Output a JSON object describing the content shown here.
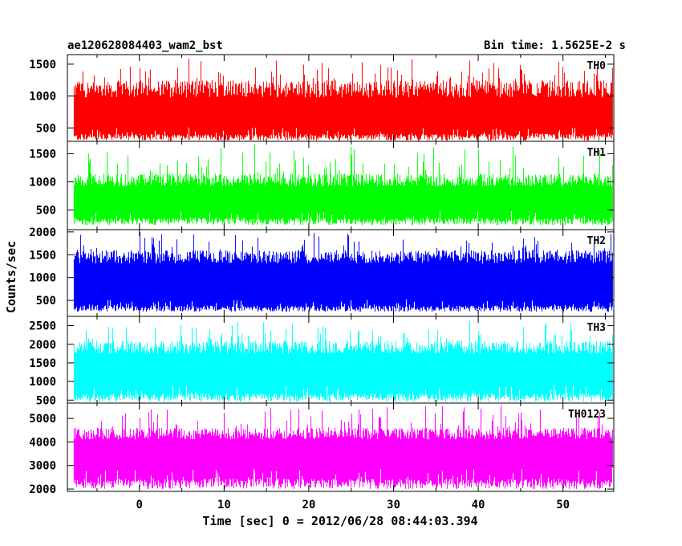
{
  "header": {
    "left_title": "ae120628084403_wam2_bst",
    "right_title": "Bin time: 1.5625E-2 s"
  },
  "chart_data": {
    "type": "line",
    "title": "ae120628084403_wam2_bst",
    "subtitle": "Bin time: 1.5625E-2 s",
    "xlabel": "Time [sec] 0 = 2012/06/28 08:44:03.394",
    "ylabel": "Counts/sec",
    "xlim": [
      -8.5,
      56
    ],
    "data_range": [
      -7.7,
      55.9
    ],
    "x_ticks": [
      0,
      10,
      20,
      30,
      40,
      50
    ],
    "grid": false,
    "panels": [
      {
        "name": "TH0",
        "color": "#ff0000",
        "ylim": [
          290,
          1650
        ],
        "y_ticks": [
          500,
          1000,
          1500
        ],
        "baseline": [
          300,
          510
        ],
        "mean": 640,
        "peak": [
          1250,
          1620
        ]
      },
      {
        "name": "TH1",
        "color": "#00ff00",
        "ylim": [
          150,
          1720
        ],
        "y_ticks": [
          500,
          1000,
          1500
        ],
        "baseline": [
          230,
          480
        ],
        "mean": 640,
        "peak": [
          1150,
          1720
        ]
      },
      {
        "name": "TH2",
        "color": "#0000ff",
        "ylim": [
          150,
          2050
        ],
        "y_ticks": [
          500,
          1000,
          1500,
          2000
        ],
        "baseline": [
          250,
          520
        ],
        "mean": 950,
        "peak": [
          1600,
          2050
        ]
      },
      {
        "name": "TH3",
        "color": "#00ffff",
        "ylim": [
          420,
          2750
        ],
        "y_ticks": [
          500,
          1000,
          1500,
          2000,
          2500
        ],
        "baseline": [
          460,
          900
        ],
        "mean": 1300,
        "peak": [
          2100,
          2750
        ]
      },
      {
        "name": "TH0123",
        "color": "#ff00ff",
        "ylim": [
          1900,
          5650
        ],
        "y_ticks": [
          2000,
          3000,
          4000,
          5000
        ],
        "baseline": [
          2000,
          2900
        ],
        "mean": 3500,
        "peak": [
          4600,
          5650
        ]
      }
    ]
  }
}
